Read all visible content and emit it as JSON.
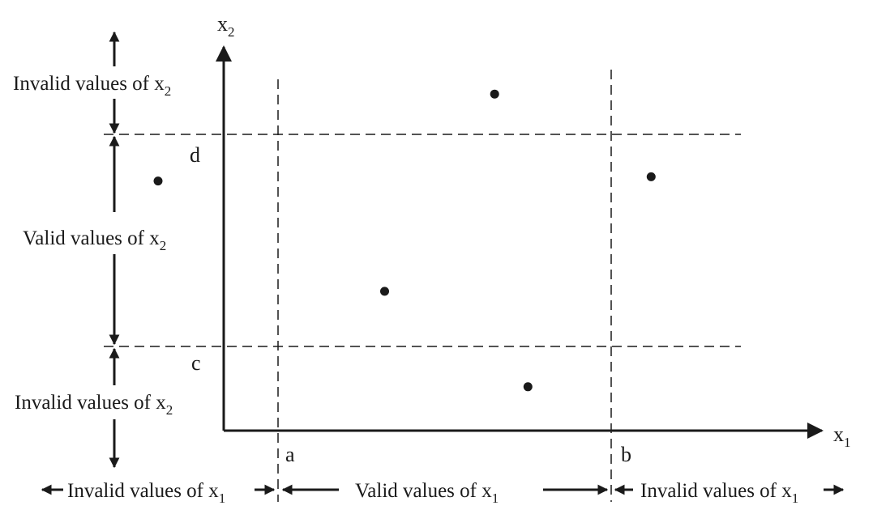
{
  "axes": {
    "x_label": "x",
    "x_sub": "1",
    "y_label": "x",
    "y_sub": "2"
  },
  "bounds": {
    "a": "a",
    "b": "b",
    "c": "c",
    "d": "d"
  },
  "regions": {
    "x2_invalid_top": {
      "text": "Invalid values of x",
      "sub": "2"
    },
    "x2_valid": {
      "text": "Valid values of x",
      "sub": "2"
    },
    "x2_invalid_bottom": {
      "text": "Invalid values of x",
      "sub": "2"
    },
    "x1_invalid_left": {
      "text": "Invalid values of x",
      "sub": "1"
    },
    "x1_valid": {
      "text": "Valid values of x",
      "sub": "1"
    },
    "x1_invalid_right": {
      "text": "Invalid values of x",
      "sub": "1"
    }
  },
  "points": [
    {
      "name": "point-top-middle",
      "x1": 0.65,
      "x2": 1.19
    },
    {
      "name": "point-right",
      "x1": 1.12,
      "x2": 0.8
    },
    {
      "name": "point-left",
      "x1": -0.36,
      "x2": 0.78
    },
    {
      "name": "point-center",
      "x1": 0.32,
      "x2": 0.26
    },
    {
      "name": "point-bottom",
      "x1": 0.75,
      "x2": -0.19
    }
  ],
  "ranges": {
    "a_value": 0,
    "b_value": 1,
    "c_value": 0,
    "d_value": 1
  }
}
